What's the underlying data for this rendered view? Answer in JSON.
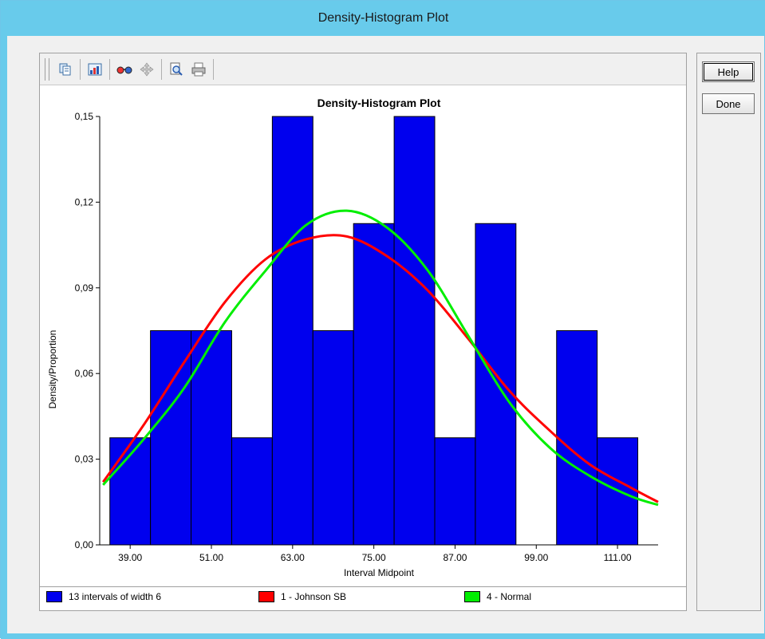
{
  "window": {
    "title": "Density-Histogram Plot"
  },
  "toolbar": {
    "buttons": [
      {
        "name": "copy-icon",
        "label": "Copy"
      },
      {
        "name": "chart-properties-icon",
        "label": "Properties"
      },
      {
        "name": "glasses-icon",
        "label": "View"
      },
      {
        "name": "move-icon",
        "label": "Pan"
      },
      {
        "name": "zoom-icon",
        "label": "Zoom"
      },
      {
        "name": "print-icon",
        "label": "Print"
      }
    ]
  },
  "side_buttons": {
    "help": "Help",
    "done": "Done"
  },
  "legend": {
    "items": [
      {
        "label": "13 intervals of width 6",
        "color": "#0000ee"
      },
      {
        "label": "1 - Johnson SB",
        "color": "#ff0000"
      },
      {
        "label": "4 - Normal",
        "color": "#00ee00"
      }
    ]
  },
  "chart_data": {
    "type": "bar",
    "title": "Density-Histogram Plot",
    "xlabel": "Interval Midpoint",
    "ylabel": "Density/Proportion",
    "bar_color": "#0000ee",
    "x_ticks": [
      "39.00",
      "51.00",
      "63.00",
      "75.00",
      "87.00",
      "99.00",
      "111.00"
    ],
    "y_ticks": [
      "0,00",
      "0,03",
      "0,06",
      "0,09",
      "0,12",
      "0,15"
    ],
    "ylim": [
      0,
      0.15
    ],
    "xlim": [
      34.5,
      117
    ],
    "bin_width": 6,
    "bins": [
      {
        "midpoint": 39,
        "value": 0.0375
      },
      {
        "midpoint": 45,
        "value": 0.075
      },
      {
        "midpoint": 51,
        "value": 0.075
      },
      {
        "midpoint": 57,
        "value": 0.0375
      },
      {
        "midpoint": 63,
        "value": 0.15
      },
      {
        "midpoint": 69,
        "value": 0.075
      },
      {
        "midpoint": 75,
        "value": 0.1125
      },
      {
        "midpoint": 81,
        "value": 0.15
      },
      {
        "midpoint": 87,
        "value": 0.0375
      },
      {
        "midpoint": 93,
        "value": 0.1125
      },
      {
        "midpoint": 99,
        "value": 0
      },
      {
        "midpoint": 105,
        "value": 0.075
      },
      {
        "midpoint": 111,
        "value": 0.0375
      }
    ],
    "series": [
      {
        "name": "1 - Johnson SB",
        "color": "#ff0000",
        "x": [
          35,
          41,
          47,
          53,
          59,
          65,
          71,
          77,
          83,
          89,
          95,
          101,
          107,
          113,
          117
        ],
        "y": [
          0.022,
          0.042,
          0.064,
          0.085,
          0.1,
          0.107,
          0.108,
          0.101,
          0.089,
          0.072,
          0.054,
          0.04,
          0.028,
          0.02,
          0.015
        ]
      },
      {
        "name": "4 - Normal",
        "color": "#00ee00",
        "x": [
          35,
          41,
          47,
          53,
          59,
          65,
          71,
          77,
          83,
          89,
          95,
          101,
          107,
          113,
          117
        ],
        "y": [
          0.021,
          0.037,
          0.055,
          0.078,
          0.096,
          0.112,
          0.117,
          0.111,
          0.096,
          0.073,
          0.05,
          0.034,
          0.024,
          0.017,
          0.014
        ]
      }
    ]
  }
}
